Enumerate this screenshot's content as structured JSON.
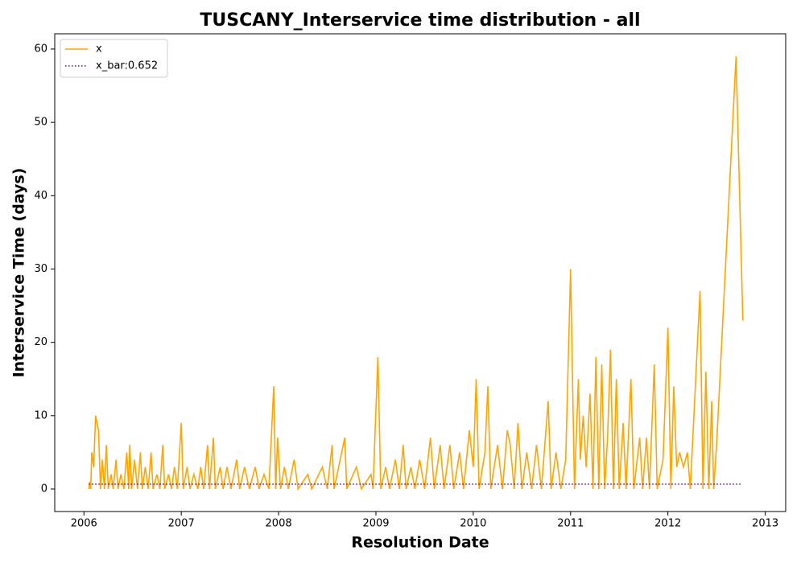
{
  "chart_data": {
    "type": "line",
    "title": "TUSCANY_Interservice time distribution - all",
    "x_label": "Resolution Date",
    "y_label": "Interservice Time (days)",
    "xlim": [
      2005.7,
      2013.21
    ],
    "xticks": [
      2006,
      2007,
      2008,
      2009,
      2010,
      2011,
      2012,
      2013
    ],
    "ylim": [
      -3.07,
      62.08
    ],
    "yticks": [
      0,
      10,
      20,
      30,
      40,
      50,
      60
    ],
    "legend": "upper left",
    "series": [
      {
        "name": "x",
        "color": "#ffa500",
        "style": "solid",
        "x": [
          2006.05,
          2006.06,
          2006.07,
          2006.08,
          2006.1,
          2006.12,
          2006.15,
          2006.17,
          2006.19,
          2006.21,
          2006.23,
          2006.25,
          2006.28,
          2006.3,
          2006.33,
          2006.35,
          2006.38,
          2006.41,
          2006.44,
          2006.46,
          2006.47,
          2006.49,
          2006.52,
          2006.55,
          2006.58,
          2006.6,
          2006.63,
          2006.66,
          2006.69,
          2006.71,
          2006.75,
          2006.78,
          2006.81,
          2006.83,
          2006.87,
          2006.9,
          2006.93,
          2006.96,
          2007.0,
          2007.02,
          2007.06,
          2007.09,
          2007.13,
          2007.17,
          2007.2,
          2007.23,
          2007.27,
          2007.29,
          2007.33,
          2007.35,
          2007.4,
          2007.43,
          2007.47,
          2007.51,
          2007.57,
          2007.6,
          2007.65,
          2007.7,
          2007.76,
          2007.8,
          2007.85,
          2007.9,
          2007.95,
          2007.97,
          2007.99,
          2008.02,
          2008.06,
          2008.1,
          2008.16,
          2008.2,
          2008.3,
          2008.34,
          2008.45,
          2008.5,
          2008.55,
          2008.57,
          2008.68,
          2008.7,
          2008.8,
          2008.85,
          2008.95,
          2008.97,
          2009.02,
          2009.05,
          2009.1,
          2009.14,
          2009.2,
          2009.24,
          2009.28,
          2009.31,
          2009.36,
          2009.4,
          2009.45,
          2009.5,
          2009.56,
          2009.6,
          2009.66,
          2009.7,
          2009.76,
          2009.8,
          2009.86,
          2009.9,
          2009.96,
          2010.0,
          2010.03,
          2010.06,
          2010.12,
          2010.15,
          2010.18,
          2010.25,
          2010.3,
          2010.35,
          2010.38,
          2010.42,
          2010.46,
          2010.5,
          2010.55,
          2010.6,
          2010.65,
          2010.7,
          2010.77,
          2010.8,
          2010.85,
          2010.9,
          2010.95,
          2011.0,
          2011.04,
          2011.08,
          2011.1,
          2011.13,
          2011.16,
          2011.2,
          2011.23,
          2011.26,
          2011.29,
          2011.32,
          2011.35,
          2011.38,
          2011.41,
          2011.44,
          2011.47,
          2011.5,
          2011.54,
          2011.57,
          2011.62,
          2011.65,
          2011.71,
          2011.74,
          2011.78,
          2011.81,
          2011.86,
          2011.89,
          2011.95,
          2012.0,
          2012.03,
          2012.06,
          2012.09,
          2012.12,
          2012.16,
          2012.2,
          2012.23,
          2012.33,
          2012.36,
          2012.39,
          2012.42,
          2012.45,
          2012.47,
          2012.5,
          2012.7,
          2012.77
        ],
        "values": [
          0,
          1,
          0,
          5,
          3,
          10,
          8,
          0,
          4,
          0,
          6,
          0,
          2,
          0,
          4,
          0,
          2,
          0,
          5,
          0,
          6,
          0,
          4,
          0,
          5,
          0,
          3,
          0,
          5,
          0,
          2,
          0,
          6,
          0,
          2,
          0,
          3,
          0,
          9,
          0,
          3,
          0,
          2,
          0,
          3,
          0,
          6,
          0,
          7,
          0,
          3,
          0,
          3,
          0,
          4,
          0,
          3,
          0,
          3,
          0,
          2,
          0,
          14,
          0,
          7,
          0,
          3,
          0,
          4,
          0,
          2,
          0,
          3,
          0,
          6,
          0,
          7,
          0,
          3,
          0,
          2,
          0,
          18,
          0,
          3,
          0,
          4,
          0,
          6,
          0,
          3,
          0,
          4,
          0,
          7,
          0,
          6,
          0,
          6,
          0,
          5,
          0,
          8,
          3,
          15,
          0,
          5,
          14,
          0,
          6,
          0,
          8,
          6,
          0,
          9,
          0,
          5,
          0,
          6,
          0,
          12,
          0,
          5,
          0,
          4,
          30,
          0,
          15,
          4,
          10,
          3,
          13,
          0,
          18,
          0,
          17,
          0,
          7,
          19,
          0,
          15,
          0,
          9,
          0,
          15,
          0,
          7,
          0,
          7,
          0,
          17,
          0,
          4,
          22,
          0,
          14,
          3,
          5,
          3,
          5,
          0,
          27,
          0,
          16,
          0,
          12,
          0,
          6,
          59,
          23
        ]
      },
      {
        "name": "x_bar:0.652",
        "color": "#800080",
        "style": "dotted",
        "x": [
          2006.05,
          2012.75
        ],
        "values": [
          0.652,
          0.652
        ]
      }
    ]
  }
}
